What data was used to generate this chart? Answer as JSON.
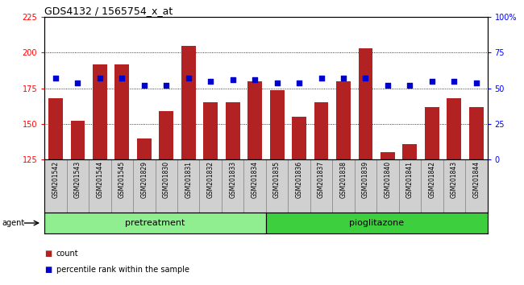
{
  "title": "GDS4132 / 1565754_x_at",
  "categories": [
    "GSM201542",
    "GSM201543",
    "GSM201544",
    "GSM201545",
    "GSM201829",
    "GSM201830",
    "GSM201831",
    "GSM201832",
    "GSM201833",
    "GSM201834",
    "GSM201835",
    "GSM201836",
    "GSM201837",
    "GSM201838",
    "GSM201839",
    "GSM201840",
    "GSM201841",
    "GSM201842",
    "GSM201843",
    "GSM201844"
  ],
  "counts": [
    168,
    152,
    192,
    192,
    140,
    159,
    205,
    165,
    165,
    180,
    174,
    155,
    165,
    180,
    203,
    130,
    136,
    162,
    168,
    162
  ],
  "percentiles": [
    57,
    54,
    57,
    57,
    52,
    52,
    57,
    55,
    56,
    56,
    54,
    54,
    57,
    57,
    57,
    52,
    52,
    55,
    55,
    54
  ],
  "group_pretreatment_indices": [
    0,
    9
  ],
  "group_pioglitazone_indices": [
    10,
    19
  ],
  "ylim_left": [
    125,
    225
  ],
  "ylim_right": [
    0,
    100
  ],
  "yticks_left": [
    125,
    150,
    175,
    200,
    225
  ],
  "yticks_right": [
    0,
    25,
    50,
    75,
    100
  ],
  "bar_color": "#b22222",
  "scatter_color": "#0000cc",
  "plot_bg_color": "#ffffff",
  "label_bg_color": "#d0d0d0",
  "group_color_pretreatment": "#90ee90",
  "group_color_pioglitazone": "#3ecf3e",
  "legend_count_label": "count",
  "legend_pct_label": "percentile rank within the sample",
  "agent_label": "agent",
  "pretreatment_label": "pretreatment",
  "pioglitazone_label": "pioglitazone"
}
